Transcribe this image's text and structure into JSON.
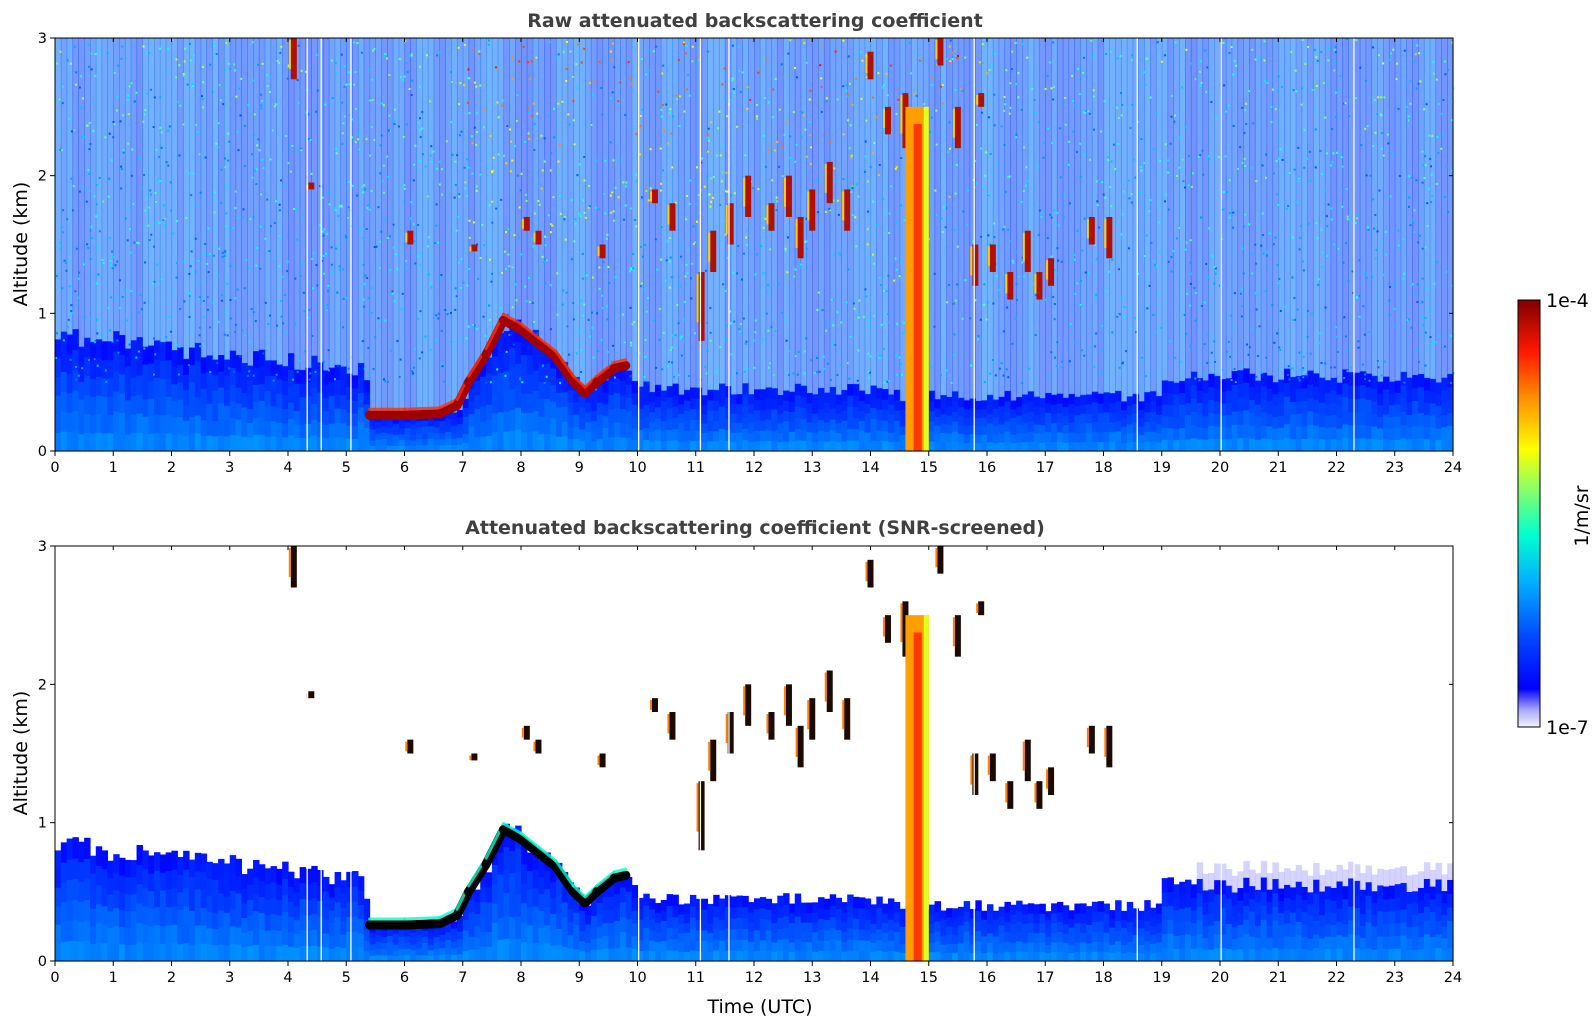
{
  "chart_data": [
    {
      "type": "heatmap",
      "title": "Raw attenuated backscattering coefficient",
      "xlabel": "",
      "ylabel": "Altitude (km)",
      "xlim": [
        0,
        24
      ],
      "ylim": [
        0,
        3
      ],
      "xticks": [
        "0",
        "1",
        "2",
        "3",
        "4",
        "5",
        "6",
        "7",
        "8",
        "9",
        "10",
        "11",
        "12",
        "13",
        "14",
        "15",
        "16",
        "17",
        "18",
        "19",
        "20",
        "21",
        "22",
        "23",
        "24"
      ],
      "yticks": [
        "0",
        "1",
        "2",
        "3"
      ],
      "grid": false,
      "screened": false
    },
    {
      "type": "heatmap",
      "title": "Attenuated backscattering coefficient (SNR-screened)",
      "xlabel": "Time (UTC)",
      "ylabel": "Altitude (km)",
      "xlim": [
        0,
        24
      ],
      "ylim": [
        0,
        3
      ],
      "xticks": [
        "0",
        "1",
        "2",
        "3",
        "4",
        "5",
        "6",
        "7",
        "8",
        "9",
        "10",
        "11",
        "12",
        "13",
        "14",
        "15",
        "16",
        "17",
        "18",
        "19",
        "20",
        "21",
        "22",
        "23",
        "24"
      ],
      "yticks": [
        "0",
        "1",
        "2",
        "3"
      ],
      "grid": false,
      "screened": true
    }
  ],
  "colorbar": {
    "label": "1/m/sr",
    "max_label": "1e-4",
    "min_label": "1e-7",
    "scale": "log",
    "range": [
      1e-07,
      0.0001
    ],
    "colormap": "jet"
  },
  "features": {
    "stratocumulus_layer": [
      [
        5.4,
        0.26
      ],
      [
        6.0,
        0.26
      ],
      [
        6.6,
        0.27
      ],
      [
        6.9,
        0.33
      ],
      [
        7.1,
        0.5
      ],
      [
        7.4,
        0.7
      ],
      [
        7.7,
        0.95
      ],
      [
        8.0,
        0.88
      ],
      [
        8.3,
        0.78
      ],
      [
        8.6,
        0.68
      ],
      [
        8.9,
        0.5
      ],
      [
        9.1,
        0.42
      ],
      [
        9.3,
        0.5
      ],
      [
        9.6,
        0.6
      ],
      [
        9.8,
        0.62
      ]
    ],
    "precip_column": {
      "x_start": 14.6,
      "x_end": 15.0,
      "top_km": 2.5
    },
    "dropouts": [
      4.33,
      4.57,
      5.08,
      10.02,
      11.08,
      11.57,
      15.78,
      18.58,
      20.02,
      22.3
    ],
    "clouds": [
      [
        4.1,
        2.7,
        3.0
      ],
      [
        4.4,
        1.9,
        1.95
      ],
      [
        6.1,
        1.5,
        1.6
      ],
      [
        7.2,
        1.45,
        1.5
      ],
      [
        8.1,
        1.6,
        1.7
      ],
      [
        8.3,
        1.5,
        1.6
      ],
      [
        9.4,
        1.4,
        1.5
      ],
      [
        10.3,
        1.8,
        1.9
      ],
      [
        10.6,
        1.6,
        1.8
      ],
      [
        11.1,
        0.8,
        1.3
      ],
      [
        11.3,
        1.3,
        1.6
      ],
      [
        11.6,
        1.5,
        1.8
      ],
      [
        11.9,
        1.7,
        2.0
      ],
      [
        12.3,
        1.6,
        1.8
      ],
      [
        12.6,
        1.7,
        2.0
      ],
      [
        12.8,
        1.4,
        1.7
      ],
      [
        13.0,
        1.6,
        1.9
      ],
      [
        13.3,
        1.8,
        2.1
      ],
      [
        13.6,
        1.6,
        1.9
      ],
      [
        14.0,
        2.7,
        2.9
      ],
      [
        14.3,
        2.3,
        2.5
      ],
      [
        14.6,
        2.2,
        2.6
      ],
      [
        15.2,
        2.8,
        3.0
      ],
      [
        15.5,
        2.2,
        2.5
      ],
      [
        15.9,
        2.5,
        2.6
      ],
      [
        15.8,
        1.2,
        1.5
      ],
      [
        16.1,
        1.3,
        1.5
      ],
      [
        16.4,
        1.1,
        1.3
      ],
      [
        16.7,
        1.3,
        1.6
      ],
      [
        16.9,
        1.1,
        1.3
      ],
      [
        17.1,
        1.2,
        1.4
      ],
      [
        17.8,
        1.5,
        1.7
      ],
      [
        18.1,
        1.4,
        1.7
      ]
    ]
  }
}
